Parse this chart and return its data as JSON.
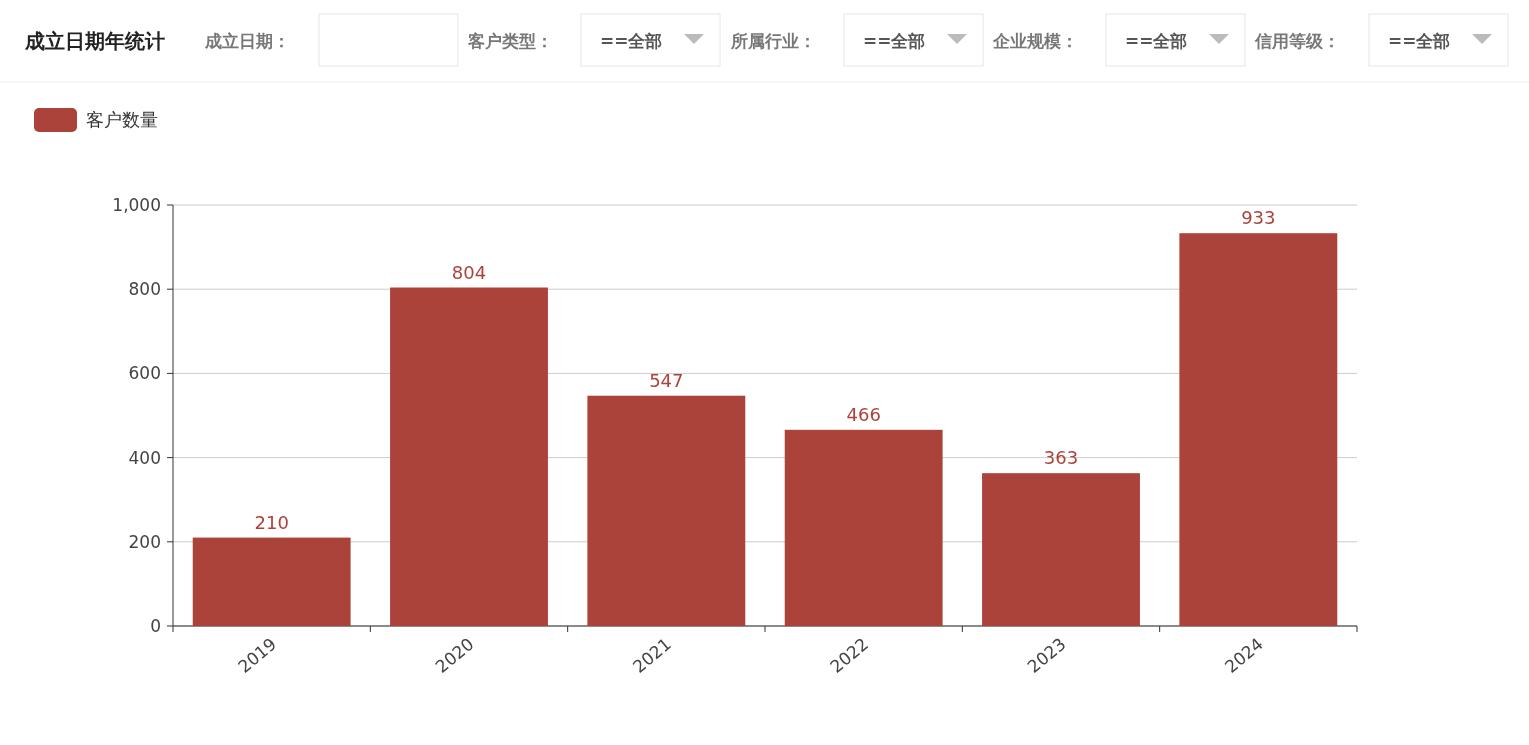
{
  "chart_data": {
    "type": "bar",
    "title": "成立日期年统计",
    "annotations": [
      "成立日期：",
      "客户类型：",
      "==全部",
      "所属行业：",
      "==全部",
      "企业规模：",
      "==全部",
      "信用等级：",
      "==全部"
    ],
    "categories": [
      "2019",
      "2020",
      "2021",
      "2022",
      "2023",
      "2024"
    ],
    "series": [
      {
        "name": "客户数量",
        "color": "#ab433a",
        "values": [
          210,
          804,
          547,
          466,
          363,
          933
        ]
      }
    ],
    "ylim": [
      0,
      1000
    ],
    "yticks": [
      0,
      200,
      400,
      600,
      800,
      {
        "value": 1000,
        "label": "1,000"
      }
    ],
    "grid": "y",
    "legend": "top left",
    "data_labels": true
  }
}
